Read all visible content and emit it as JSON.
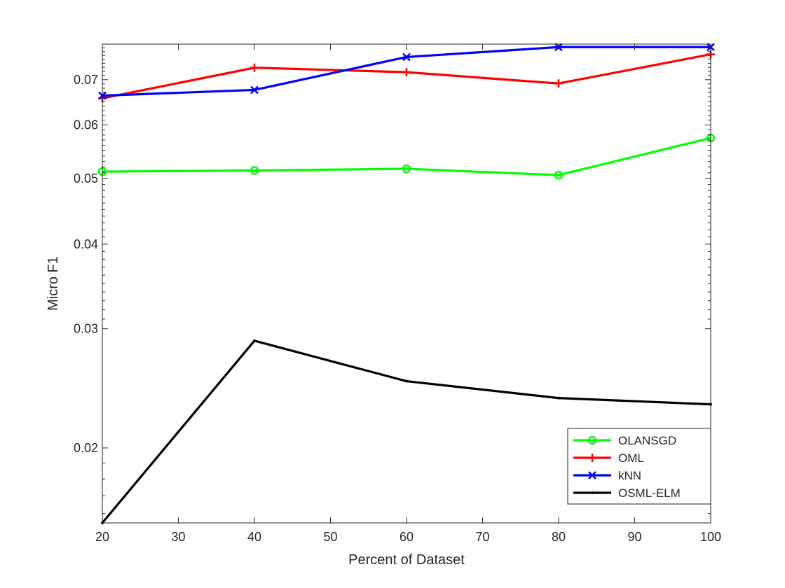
{
  "chart_data": {
    "type": "line",
    "title": "",
    "xlabel": "Percent of Dataset",
    "ylabel": "Micro F1",
    "x": [
      20,
      40,
      60,
      80,
      100
    ],
    "xlim": [
      20,
      100
    ],
    "xticks": [
      20,
      30,
      40,
      50,
      60,
      70,
      80,
      90,
      100
    ],
    "xtick_labels": [
      "20",
      "30",
      "40",
      "50",
      "60",
      "70",
      "80",
      "90",
      "100"
    ],
    "yscale": "log",
    "ylim": [
      0.0155,
      0.079
    ],
    "yticks": [
      0.02,
      0.03,
      0.04,
      0.05,
      0.06,
      0.07
    ],
    "ytick_labels": [
      "0.02",
      "0.03",
      "0.04",
      "0.05",
      "0.06",
      "0.07"
    ],
    "grid": false,
    "legend_position": "bottom-right",
    "series": [
      {
        "name": "OLANSGD",
        "color": "#00ff00",
        "marker": "circle",
        "values": [
          0.0512,
          0.0514,
          0.0517,
          0.0506,
          0.0574
        ]
      },
      {
        "name": "OML",
        "color": "#ff0000",
        "marker": "plus",
        "values": [
          0.0657,
          0.0729,
          0.0718,
          0.0691,
          0.0763
        ]
      },
      {
        "name": "kNN",
        "color": "#0000ff",
        "marker": "x",
        "values": [
          0.0663,
          0.0676,
          0.0756,
          0.0782,
          0.0782
        ]
      },
      {
        "name": "OSML-ELM",
        "color": "#000000",
        "marker": "point",
        "values": [
          0.0155,
          0.0288,
          0.0251,
          0.0237,
          0.0232
        ]
      }
    ]
  }
}
